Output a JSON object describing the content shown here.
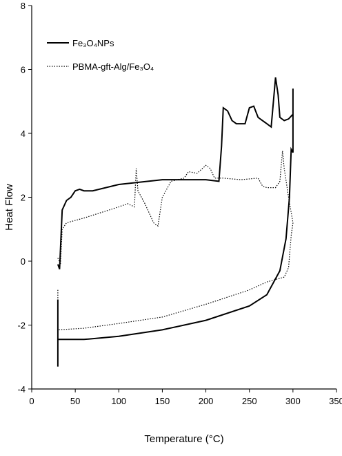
{
  "chart_data": {
    "type": "line",
    "xlabel": "Temperature (°C)",
    "ylabel": "Heat Flow",
    "xlim": [
      0,
      350
    ],
    "xticks": [
      0,
      50,
      100,
      150,
      200,
      250,
      300,
      350
    ],
    "ylim": [
      -4,
      8
    ],
    "yticks": [
      -4,
      -2,
      0,
      2,
      4,
      6,
      8
    ],
    "grid": false,
    "legend": "upper left",
    "series": [
      {
        "name": "Fe₃O₄NPs",
        "color": "#000000",
        "style": "solid",
        "x": [
          30,
          32,
          35,
          40,
          45,
          50,
          55,
          60,
          70,
          100,
          150,
          200,
          215,
          218,
          220,
          225,
          230,
          235,
          245,
          250,
          255,
          260,
          270,
          275,
          280,
          283,
          285,
          290,
          295,
          300,
          300,
          300,
          298,
          296,
          292,
          285,
          270,
          250,
          200,
          150,
          100,
          60,
          30,
          null,
          30,
          30
        ],
        "values": [
          -0.1,
          -0.25,
          1.6,
          1.9,
          2.0,
          2.2,
          2.25,
          2.2,
          2.2,
          2.4,
          2.55,
          2.55,
          2.5,
          3.6,
          4.8,
          4.7,
          4.4,
          4.3,
          4.3,
          4.8,
          4.85,
          4.5,
          4.3,
          4.2,
          5.75,
          5.2,
          4.5,
          4.4,
          4.45,
          4.6,
          5.4,
          3.4,
          3.5,
          2.0,
          0.7,
          -0.3,
          -1.05,
          -1.4,
          -1.85,
          -2.15,
          -2.35,
          -2.45,
          -2.45,
          null,
          -1.2,
          -3.3
        ]
      },
      {
        "name": "PBMA-gft-Alg/Fe₃O₄",
        "color": "#000000",
        "style": "dotted",
        "x": [
          30,
          33,
          35,
          40,
          60,
          100,
          110,
          118,
          120,
          122,
          130,
          140,
          145,
          150,
          160,
          175,
          180,
          190,
          200,
          205,
          210,
          220,
          240,
          260,
          265,
          270,
          280,
          285,
          288,
          290,
          295,
          300,
          298,
          295,
          290,
          270,
          250,
          200,
          150,
          100,
          60,
          30,
          null,
          30,
          30
        ],
        "values": [
          0.1,
          -0.1,
          1.0,
          1.2,
          1.35,
          1.7,
          1.8,
          1.7,
          2.9,
          2.2,
          1.8,
          1.2,
          1.1,
          2.0,
          2.5,
          2.6,
          2.8,
          2.75,
          3.0,
          2.9,
          2.6,
          2.6,
          2.55,
          2.6,
          2.35,
          2.3,
          2.3,
          2.5,
          3.45,
          2.9,
          2.0,
          1.2,
          0.8,
          -0.2,
          -0.5,
          -0.65,
          -0.9,
          -1.35,
          -1.75,
          -1.95,
          -2.1,
          -2.15,
          null,
          -0.9,
          -1.2
        ]
      }
    ]
  }
}
